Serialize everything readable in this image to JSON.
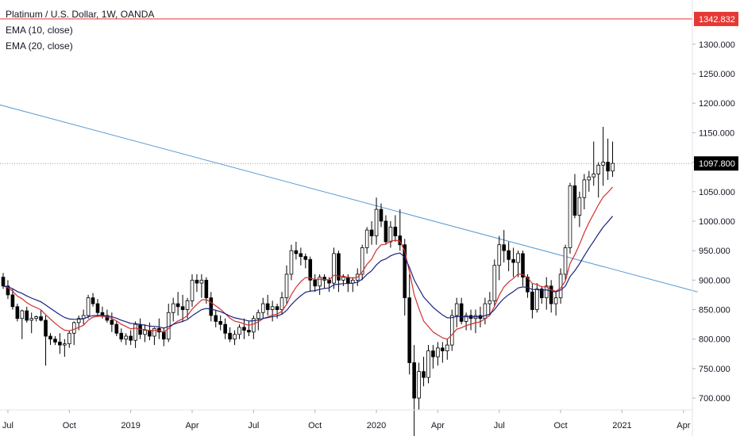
{
  "legend": {
    "symbol": "Platinum / U.S. Dollar, 1W, OANDA",
    "ema10": "EMA (10, close)",
    "ema20": "EMA (20, close)"
  },
  "colors": {
    "background": "#ffffff",
    "up_candle": "#ffffff",
    "down_candle": "#000000",
    "candle_border": "#000000",
    "ema10": "#d32f2f",
    "ema20": "#1a237e",
    "trendline": "#5b9bd5",
    "horizontal_line": "#e53935",
    "current_price_line": "#9e9e9e",
    "axis_text": "#131722"
  },
  "chart_data": {
    "type": "candlestick",
    "title": "Platinum / U.S. Dollar, 1W, OANDA",
    "timeframe": "1W",
    "ylim": [
      680,
      1375
    ],
    "y_ticks": [
      700,
      750,
      800,
      850,
      900,
      950,
      1000,
      1050,
      1100,
      1150,
      1200,
      1250,
      1300
    ],
    "y_tick_labels": [
      "700.000",
      "750.000",
      "800.000",
      "850.000",
      "900.000",
      "950.000",
      "1000.000",
      "1050.000",
      "1100.000",
      "1150.000",
      "1200.000",
      "1250.000",
      "1300.000"
    ],
    "x_ticks": [
      {
        "label": "Jul",
        "week": 1
      },
      {
        "label": "Oct",
        "week": 14
      },
      {
        "label": "2019",
        "week": 27
      },
      {
        "label": "Apr",
        "week": 40
      },
      {
        "label": "Jul",
        "week": 53
      },
      {
        "label": "Oct",
        "week": 66
      },
      {
        "label": "2020",
        "week": 79
      },
      {
        "label": "Apr",
        "week": 92
      },
      {
        "label": "Jul",
        "week": 105
      },
      {
        "label": "Oct",
        "week": 118
      },
      {
        "label": "2021",
        "week": 131
      },
      {
        "label": "Apr",
        "week": 144
      }
    ],
    "series_ohlc_format": "[open, high, low, close]",
    "candles": [
      [
        905,
        912,
        885,
        890
      ],
      [
        890,
        900,
        868,
        875
      ],
      [
        875,
        885,
        850,
        855
      ],
      [
        855,
        860,
        830,
        835
      ],
      [
        835,
        850,
        800,
        848
      ],
      [
        848,
        855,
        828,
        832
      ],
      [
        832,
        845,
        810,
        835
      ],
      [
        835,
        840,
        830,
        838
      ],
      [
        838,
        850,
        830,
        832
      ],
      [
        832,
        840,
        755,
        805
      ],
      [
        805,
        810,
        790,
        800
      ],
      [
        800,
        805,
        790,
        795
      ],
      [
        795,
        810,
        775,
        790
      ],
      [
        790,
        800,
        770,
        792
      ],
      [
        792,
        815,
        785,
        810
      ],
      [
        810,
        830,
        790,
        828
      ],
      [
        828,
        840,
        815,
        835
      ],
      [
        835,
        850,
        825,
        840
      ],
      [
        840,
        875,
        835,
        870
      ],
      [
        870,
        878,
        855,
        860
      ],
      [
        860,
        868,
        838,
        845
      ],
      [
        845,
        855,
        835,
        840
      ],
      [
        840,
        850,
        828,
        832
      ],
      [
        832,
        845,
        812,
        825
      ],
      [
        825,
        830,
        805,
        810
      ],
      [
        810,
        818,
        795,
        800
      ],
      [
        800,
        810,
        790,
        805
      ],
      [
        805,
        815,
        790,
        798
      ],
      [
        798,
        830,
        785,
        825
      ],
      [
        825,
        835,
        800,
        808
      ],
      [
        808,
        825,
        795,
        815
      ],
      [
        815,
        828,
        798,
        805
      ],
      [
        805,
        820,
        790,
        818
      ],
      [
        818,
        835,
        800,
        812
      ],
      [
        812,
        820,
        788,
        800
      ],
      [
        800,
        860,
        795,
        845
      ],
      [
        845,
        870,
        830,
        860
      ],
      [
        860,
        880,
        840,
        855
      ],
      [
        855,
        875,
        830,
        850
      ],
      [
        850,
        870,
        835,
        865
      ],
      [
        865,
        910,
        855,
        900
      ],
      [
        900,
        910,
        880,
        895
      ],
      [
        895,
        910,
        870,
        900
      ],
      [
        900,
        905,
        860,
        870
      ],
      [
        870,
        880,
        830,
        840
      ],
      [
        840,
        850,
        820,
        830
      ],
      [
        830,
        840,
        815,
        825
      ],
      [
        825,
        835,
        800,
        810
      ],
      [
        810,
        820,
        795,
        800
      ],
      [
        800,
        815,
        790,
        808
      ],
      [
        808,
        825,
        800,
        820
      ],
      [
        820,
        835,
        800,
        815
      ],
      [
        815,
        830,
        805,
        812
      ],
      [
        812,
        840,
        800,
        835
      ],
      [
        835,
        850,
        815,
        845
      ],
      [
        845,
        870,
        835,
        860
      ],
      [
        860,
        875,
        840,
        850
      ],
      [
        850,
        865,
        830,
        855
      ],
      [
        855,
        860,
        835,
        850
      ],
      [
        850,
        880,
        842,
        870
      ],
      [
        870,
        925,
        860,
        910
      ],
      [
        910,
        960,
        900,
        950
      ],
      [
        950,
        965,
        935,
        945
      ],
      [
        945,
        955,
        925,
        940
      ],
      [
        940,
        945,
        920,
        935
      ],
      [
        935,
        940,
        880,
        900
      ],
      [
        900,
        910,
        880,
        890
      ],
      [
        890,
        910,
        875,
        905
      ],
      [
        905,
        910,
        885,
        900
      ],
      [
        900,
        905,
        880,
        895
      ],
      [
        895,
        955,
        885,
        945
      ],
      [
        945,
        950,
        880,
        900
      ],
      [
        900,
        910,
        890,
        905
      ],
      [
        905,
        910,
        880,
        895
      ],
      [
        895,
        905,
        880,
        900
      ],
      [
        900,
        920,
        890,
        910
      ],
      [
        910,
        960,
        900,
        955
      ],
      [
        955,
        990,
        945,
        985
      ],
      [
        985,
        1000,
        960,
        975
      ],
      [
        975,
        1040,
        960,
        1020
      ],
      [
        1020,
        1030,
        990,
        1000
      ],
      [
        1000,
        1010,
        960,
        965
      ],
      [
        965,
        1000,
        955,
        990
      ],
      [
        990,
        1010,
        965,
        975
      ],
      [
        975,
        1020,
        950,
        960
      ],
      [
        960,
        970,
        840,
        870
      ],
      [
        870,
        910,
        740,
        760
      ],
      [
        760,
        790,
        620,
        700
      ],
      [
        700,
        760,
        680,
        745
      ],
      [
        745,
        770,
        720,
        735
      ],
      [
        735,
        790,
        725,
        780
      ],
      [
        780,
        790,
        750,
        770
      ],
      [
        770,
        795,
        755,
        785
      ],
      [
        785,
        795,
        760,
        780
      ],
      [
        780,
        800,
        765,
        790
      ],
      [
        790,
        850,
        780,
        840
      ],
      [
        840,
        870,
        820,
        860
      ],
      [
        860,
        870,
        825,
        830
      ],
      [
        830,
        845,
        815,
        840
      ],
      [
        840,
        850,
        815,
        835
      ],
      [
        835,
        850,
        810,
        840
      ],
      [
        840,
        855,
        820,
        835
      ],
      [
        835,
        870,
        825,
        860
      ],
      [
        860,
        880,
        840,
        865
      ],
      [
        865,
        935,
        855,
        925
      ],
      [
        925,
        975,
        900,
        960
      ],
      [
        960,
        985,
        930,
        950
      ],
      [
        950,
        965,
        915,
        935
      ],
      [
        935,
        955,
        905,
        930
      ],
      [
        930,
        950,
        905,
        945
      ],
      [
        945,
        950,
        890,
        905
      ],
      [
        905,
        910,
        870,
        880
      ],
      [
        880,
        895,
        835,
        850
      ],
      [
        850,
        895,
        845,
        885
      ],
      [
        885,
        890,
        860,
        870
      ],
      [
        870,
        905,
        850,
        890
      ],
      [
        890,
        900,
        845,
        860
      ],
      [
        860,
        880,
        840,
        870
      ],
      [
        870,
        920,
        860,
        910
      ],
      [
        910,
        960,
        900,
        955
      ],
      [
        955,
        1065,
        945,
        1060
      ],
      [
        1060,
        1080,
        1005,
        1010
      ],
      [
        1010,
        1050,
        990,
        1040
      ],
      [
        1040,
        1080,
        1020,
        1070
      ],
      [
        1070,
        1085,
        1050,
        1075
      ],
      [
        1075,
        1135,
        1060,
        1080
      ],
      [
        1080,
        1100,
        1040,
        1095
      ],
      [
        1095,
        1160,
        1060,
        1100
      ],
      [
        1100,
        1140,
        1070,
        1085
      ],
      [
        1085,
        1135,
        1075,
        1098
      ]
    ],
    "ema10": "EMA (10, close)",
    "ema20": "EMA (20, close)",
    "trendline": {
      "start": {
        "week": -2,
        "price": 1200
      },
      "end": {
        "week": 147,
        "price": 880
      }
    },
    "horizontal_line": {
      "price": 1342.832,
      "label": "1342.832"
    },
    "current_price": {
      "price": 1097.8,
      "label": "1097.800"
    }
  }
}
